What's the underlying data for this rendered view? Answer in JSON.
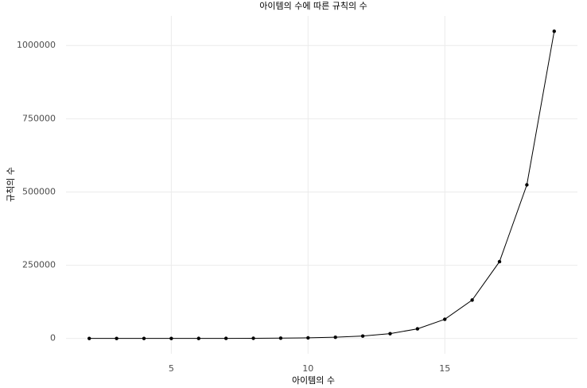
{
  "chart_data": {
    "type": "line",
    "title": "아이템의 수에 따른 규칙의 수",
    "x_label": "아이템의 수",
    "y_label": "규칙의 수",
    "x": [
      2,
      3,
      4,
      5,
      6,
      7,
      8,
      9,
      10,
      11,
      12,
      13,
      14,
      15,
      16,
      17,
      18,
      19
    ],
    "series": [
      {
        "color": "#000000",
        "values": [
          6,
          14,
          30,
          62,
          126,
          254,
          510,
          1022,
          2046,
          4094,
          8190,
          16382,
          32766,
          65534,
          131070,
          262142,
          524286,
          1048574
        ]
      }
    ],
    "xlim": [
      1.15,
      19.85
    ],
    "ylim": [
      -52428,
      1100999
    ],
    "xticks": [
      5,
      10,
      15
    ],
    "yticks": [
      0,
      250000,
      500000,
      750000,
      1000000
    ],
    "grid": true
  }
}
